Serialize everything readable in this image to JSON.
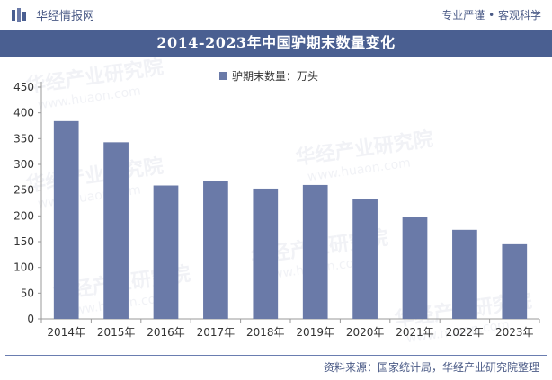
{
  "header": {
    "brand_name": "华经情报网",
    "slogan": "专业严谨 • 客观科学"
  },
  "title": "2014-2023年中国驴期末数量变化",
  "source": "资料来源：国家统计局，华经产业研究院整理",
  "watermark": {
    "text_cn": "华经产业研究院",
    "text_en": "www.huaon.com"
  },
  "colors": {
    "bar": "#6a7aa8",
    "title_bg": "#4a5f91"
  },
  "chart_data": {
    "type": "bar",
    "categories": [
      "2014年",
      "2015年",
      "2016年",
      "2017年",
      "2018年",
      "2019年",
      "2020年",
      "2021年",
      "2022年",
      "2023年"
    ],
    "series": [
      {
        "name": "驴期末数量：万头",
        "values": [
          384,
          343,
          259,
          268,
          253,
          260,
          232,
          198,
          173,
          145
        ]
      }
    ],
    "ylim": [
      0,
      450
    ],
    "yticks": [
      0,
      50,
      100,
      150,
      200,
      250,
      300,
      350,
      400,
      450
    ],
    "legend_position": "top-center",
    "grid": false
  }
}
